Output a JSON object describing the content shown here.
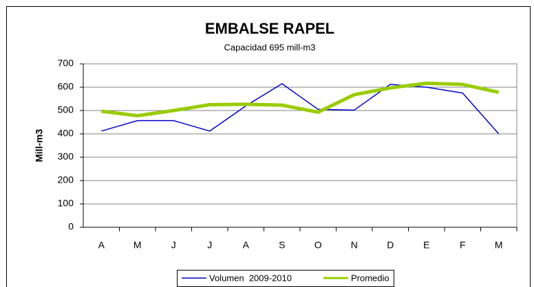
{
  "chart_data": {
    "type": "line",
    "title": "EMBALSE RAPEL",
    "subtitle": "Capacidad 695 mill-m3",
    "y_label": "Mill-m3",
    "categories": [
      "A",
      "M",
      "J",
      "J",
      "A",
      "S",
      "O",
      "N",
      "D",
      "E",
      "F",
      "M"
    ],
    "series": [
      {
        "name": "Volumen  2009-2010",
        "color": "#0000cc",
        "width": 1.5,
        "values": [
          412,
          457,
          457,
          412,
          520,
          615,
          505,
          502,
          612,
          600,
          575,
          400
        ]
      },
      {
        "name": "Promedio",
        "color": "#99cc00",
        "width": 5,
        "values": [
          497,
          478,
          500,
          525,
          527,
          523,
          493,
          568,
          597,
          617,
          612,
          578
        ]
      }
    ],
    "ylim": [
      0,
      700
    ],
    "yticks": [
      0,
      100,
      200,
      300,
      400,
      500,
      600,
      700
    ],
    "grid": true,
    "legend": "bottom"
  }
}
